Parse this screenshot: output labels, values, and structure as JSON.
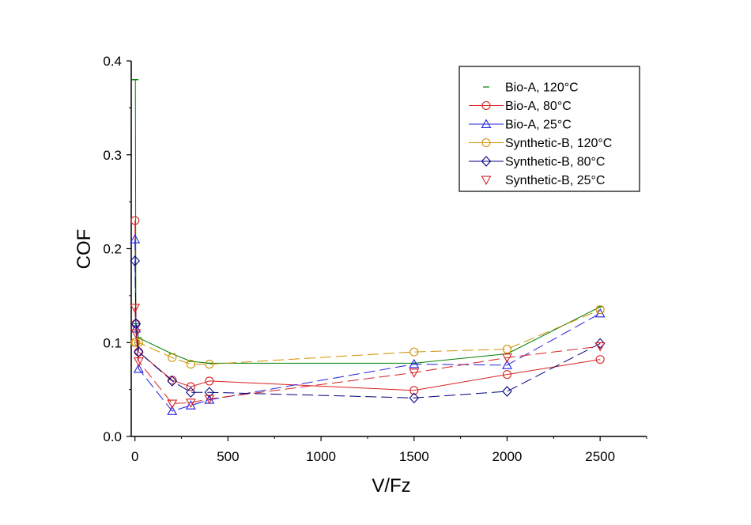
{
  "chart_data": {
    "type": "line",
    "title": "",
    "xlabel": "V/Fz",
    "ylabel": "COF",
    "xlim": [
      -20,
      2750
    ],
    "ylim": [
      0,
      0.4
    ],
    "xticks": [
      0,
      500,
      1000,
      1500,
      2000,
      2500
    ],
    "yticks": [
      0.0,
      0.1,
      0.2,
      0.3,
      0.4
    ],
    "xtick_labels": [
      "0",
      "500",
      "1000",
      "1500",
      "2000",
      "2500"
    ],
    "ytick_labels": [
      "0.0",
      "0.1",
      "0.2",
      "0.3",
      "0.4"
    ],
    "grid": false,
    "legend_position": "top-right",
    "series": [
      {
        "name": "Bio-A, 120°C",
        "color": "#008000",
        "marker": "dash",
        "line": "solid",
        "x": [
          0,
          2,
          5,
          20,
          200,
          300,
          400,
          1500,
          2000,
          2500
        ],
        "y": [
          0.38,
          0.38,
          0.12,
          0.105,
          0.088,
          0.08,
          0.078,
          0.078,
          0.088,
          0.138
        ]
      },
      {
        "name": "Bio-A, 80°C",
        "color": "#d92020",
        "marker": "circle",
        "line": "solid",
        "x": [
          0,
          5,
          20,
          200,
          300,
          400,
          1500,
          2000,
          2500
        ],
        "y": [
          0.23,
          0.12,
          0.09,
          0.06,
          0.053,
          0.059,
          0.049,
          0.066,
          0.082
        ]
      },
      {
        "name": "Bio-A, 25°C",
        "color": "#2020e0",
        "marker": "triangle-up",
        "line": "dash",
        "x": [
          0,
          5,
          20,
          200,
          300,
          400,
          1500,
          2000,
          2500
        ],
        "y": [
          0.21,
          0.115,
          0.072,
          0.027,
          0.033,
          0.039,
          0.077,
          0.076,
          0.131
        ]
      },
      {
        "name": "Synthetic-B, 120°C",
        "color": "#d09000",
        "marker": "circle",
        "line": "dash",
        "x": [
          0,
          5,
          20,
          200,
          300,
          400,
          1500,
          2000,
          2500
        ],
        "y": [
          0.1,
          0.1,
          0.1,
          0.084,
          0.077,
          0.077,
          0.09,
          0.093,
          0.135
        ]
      },
      {
        "name": "Synthetic-B, 80°C",
        "color": "#000080",
        "marker": "diamond",
        "line": "dash",
        "x": [
          0,
          5,
          20,
          200,
          300,
          400,
          1500,
          2000,
          2500
        ],
        "y": [
          0.187,
          0.12,
          0.09,
          0.059,
          0.047,
          0.047,
          0.041,
          0.048,
          0.099
        ]
      },
      {
        "name": "Synthetic-B, 25°C",
        "color": "#d92020",
        "marker": "triangle-down",
        "line": "dash",
        "x": [
          0,
          5,
          20,
          200,
          300,
          400,
          1500,
          2000,
          2500
        ],
        "y": [
          0.137,
          0.11,
          0.08,
          0.035,
          0.036,
          0.04,
          0.068,
          0.084,
          0.096
        ]
      }
    ]
  }
}
